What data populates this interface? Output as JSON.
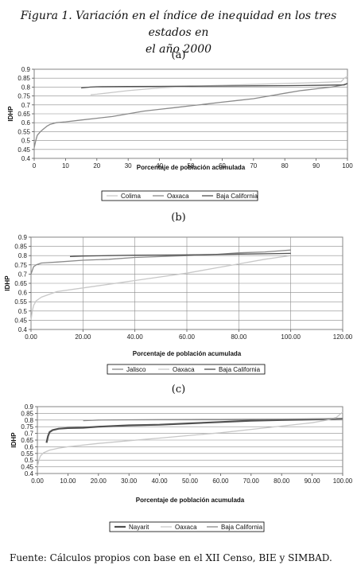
{
  "figure": {
    "title_line1": "Figura 1. Variación en el índice de inequidad en los tres estados en",
    "title_line2": "el año 2000",
    "source": "Fuente: Cálculos propios con base en el XII Censo, BIE y SIMBAD."
  },
  "chart_data": [
    {
      "panel": "(a)",
      "type": "line",
      "xlabel": "Porcentaje de población acumulada",
      "ylabel": "IDHP",
      "xlim": [
        0,
        100
      ],
      "ylim": [
        0.4,
        0.9
      ],
      "xticks": [
        0,
        10,
        20,
        30,
        40,
        50,
        60,
        70,
        80,
        90,
        100
      ],
      "xtick_labels": [
        "0",
        "10",
        "20",
        "30",
        "40",
        "50",
        "60",
        "70",
        "80",
        "90",
        "100"
      ],
      "yticks": [
        0.4,
        0.45,
        0.5,
        0.55,
        0.6,
        0.65,
        0.7,
        0.75,
        0.8,
        0.85,
        0.9
      ],
      "ytick_labels": [
        "0.4",
        "0.45",
        "0.5",
        "0.55",
        "0.6",
        "0.65",
        "0.7",
        "0.75",
        "0.8",
        "0.85",
        "0.9"
      ],
      "grid": true,
      "legend_position": "bottom",
      "series": [
        {
          "name": "Colima",
          "color": "#c8c8c8",
          "x": [
            18,
            20,
            25,
            30,
            40,
            50,
            60,
            70,
            80,
            90,
            98,
            99,
            100
          ],
          "y": [
            0.757,
            0.76,
            0.77,
            0.78,
            0.795,
            0.805,
            0.81,
            0.815,
            0.82,
            0.825,
            0.83,
            0.85,
            0.86
          ]
        },
        {
          "name": "Oaxaca",
          "color": "#8a8a8a",
          "x": [
            0,
            0.5,
            1,
            2,
            3,
            4,
            5,
            7,
            10,
            15,
            20,
            25,
            30,
            35,
            40,
            45,
            50,
            55,
            60,
            65,
            70,
            75,
            80,
            85,
            90,
            95,
            98,
            100
          ],
          "y": [
            0.46,
            0.5,
            0.53,
            0.55,
            0.565,
            0.58,
            0.59,
            0.6,
            0.605,
            0.615,
            0.625,
            0.635,
            0.65,
            0.665,
            0.675,
            0.685,
            0.695,
            0.705,
            0.715,
            0.725,
            0.735,
            0.75,
            0.765,
            0.78,
            0.79,
            0.8,
            0.81,
            0.82
          ]
        },
        {
          "name": "Baja California",
          "color": "#505050",
          "x": [
            15,
            18,
            20,
            30,
            40,
            50,
            60,
            70,
            80,
            90,
            99,
            100
          ],
          "y": [
            0.795,
            0.8,
            0.802,
            0.803,
            0.804,
            0.805,
            0.806,
            0.807,
            0.808,
            0.81,
            0.812,
            0.82
          ]
        }
      ]
    },
    {
      "panel": "(b)",
      "type": "line",
      "xlabel": "Porcentaje de población acumulada",
      "ylabel": "IDHP",
      "xlim": [
        0,
        120
      ],
      "ylim": [
        0.4,
        0.9
      ],
      "xticks": [
        0,
        20,
        40,
        60,
        80,
        100,
        120
      ],
      "xtick_labels": [
        "0.00",
        "20.00",
        "40.00",
        "60.00",
        "80.00",
        "100.00",
        "120.00"
      ],
      "yticks": [
        0.4,
        0.45,
        0.5,
        0.55,
        0.6,
        0.65,
        0.7,
        0.75,
        0.8,
        0.85,
        0.9
      ],
      "ytick_labels": [
        "0.4",
        "0.45",
        "0.5",
        "0.55",
        "0.6",
        "0.65",
        "0.7",
        "0.75",
        "0.8",
        "0.85",
        "0.9"
      ],
      "grid": true,
      "legend_position": "bottom",
      "series": [
        {
          "name": "Jalisco",
          "color": "#8a8a8a",
          "x": [
            0,
            0.5,
            1,
            2,
            4,
            10,
            20,
            30,
            40,
            50,
            60,
            70,
            80,
            90,
            95,
            100
          ],
          "y": [
            0.7,
            0.72,
            0.74,
            0.75,
            0.76,
            0.765,
            0.775,
            0.78,
            0.79,
            0.795,
            0.8,
            0.805,
            0.815,
            0.82,
            0.825,
            0.83
          ]
        },
        {
          "name": "Oaxaca",
          "color": "#c8c8c8",
          "x": [
            0,
            0.5,
            1,
            2,
            4,
            7,
            10,
            20,
            30,
            40,
            50,
            60,
            70,
            80,
            90,
            95,
            100
          ],
          "y": [
            0.45,
            0.5,
            0.53,
            0.555,
            0.575,
            0.59,
            0.605,
            0.625,
            0.645,
            0.665,
            0.685,
            0.705,
            0.73,
            0.755,
            0.78,
            0.79,
            0.8
          ]
        },
        {
          "name": "Baja California",
          "color": "#505050",
          "x": [
            15,
            20,
            30,
            40,
            50,
            60,
            70,
            80,
            90,
            100
          ],
          "y": [
            0.795,
            0.798,
            0.8,
            0.802,
            0.803,
            0.804,
            0.806,
            0.808,
            0.81,
            0.812
          ]
        }
      ]
    },
    {
      "panel": "(c)",
      "type": "line",
      "xlabel": "Porcentaje de población acumulada",
      "ylabel": "IDHP",
      "xlim": [
        0,
        100
      ],
      "ylim": [
        0.4,
        0.9
      ],
      "xticks": [
        0,
        10,
        20,
        30,
        40,
        50,
        60,
        70,
        80,
        90,
        100
      ],
      "xtick_labels": [
        "0.00",
        "10.00",
        "20.00",
        "30.00",
        "40.00",
        "50.00",
        "60.00",
        "70.00",
        "80.00",
        "90.00",
        "100.00"
      ],
      "yticks": [
        0.4,
        0.45,
        0.5,
        0.55,
        0.6,
        0.65,
        0.7,
        0.75,
        0.8,
        0.85,
        0.9
      ],
      "ytick_labels": [
        "0.4",
        "0.45",
        "0.5",
        "0.55",
        "0.6",
        "0.65",
        "0.7",
        "0.75",
        "0.8",
        "0.85",
        "0.9"
      ],
      "grid": true,
      "legend_position": "bottom",
      "series": [
        {
          "name": "Nayarit",
          "color": "#505050",
          "x": [
            3,
            3.5,
            4,
            5,
            7,
            10,
            15,
            20,
            25,
            30,
            40,
            50,
            60,
            70,
            80,
            90,
            100
          ],
          "y": [
            0.63,
            0.68,
            0.71,
            0.725,
            0.735,
            0.74,
            0.742,
            0.75,
            0.755,
            0.76,
            0.765,
            0.775,
            0.785,
            0.795,
            0.8,
            0.805,
            0.81
          ]
        },
        {
          "name": "Oaxaca",
          "color": "#c8c8c8",
          "x": [
            0,
            0.5,
            1,
            2,
            4,
            7,
            10,
            20,
            30,
            40,
            50,
            60,
            70,
            80,
            90,
            95,
            98,
            100
          ],
          "y": [
            0.45,
            0.5,
            0.53,
            0.555,
            0.575,
            0.59,
            0.6,
            0.625,
            0.645,
            0.665,
            0.685,
            0.705,
            0.73,
            0.755,
            0.78,
            0.8,
            0.82,
            0.86
          ]
        },
        {
          "name": "Baja California",
          "color": "#8a8a8a",
          "x": [
            15,
            20,
            30,
            40,
            50,
            60,
            70,
            80,
            90,
            100
          ],
          "y": [
            0.795,
            0.8,
            0.802,
            0.803,
            0.804,
            0.805,
            0.806,
            0.807,
            0.809,
            0.81
          ]
        }
      ]
    }
  ]
}
